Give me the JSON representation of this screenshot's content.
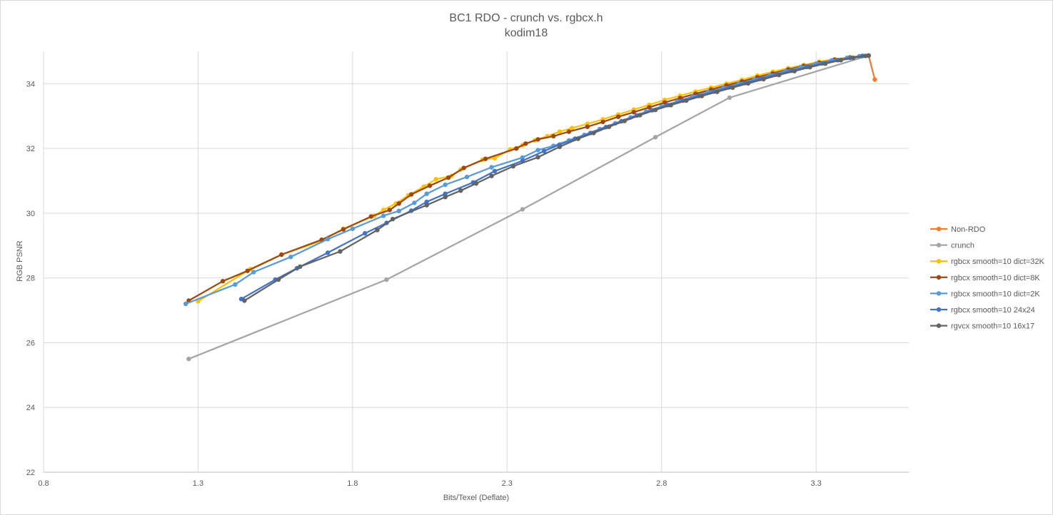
{
  "chart_data": {
    "type": "line",
    "title": "BC1 RDO - crunch vs. rgbcx.h",
    "subtitle": "kodim18",
    "xlabel": "Bits/Texel (Deflate)",
    "ylabel": "RGB PSNR",
    "xlim": [
      0.8,
      3.6
    ],
    "ylim": [
      22,
      35
    ],
    "x_ticks": [
      "0.8",
      "1.3",
      "1.8",
      "2.3",
      "2.8",
      "3.3"
    ],
    "y_ticks": [
      "22",
      "24",
      "26",
      "28",
      "30",
      "32",
      "34"
    ],
    "grid": true,
    "legend_position": "right",
    "series": [
      {
        "name": "Non-RDO",
        "color": "#ED7D31",
        "points": [
          [
            3.47,
            34.87
          ],
          [
            3.49,
            34.13
          ]
        ]
      },
      {
        "name": "crunch",
        "color": "#A5A5A5",
        "points": [
          [
            1.27,
            25.5
          ],
          [
            1.91,
            27.95
          ],
          [
            2.35,
            30.12
          ],
          [
            2.78,
            32.35
          ],
          [
            3.02,
            33.57
          ],
          [
            3.47,
            34.87
          ]
        ]
      },
      {
        "name": "rgbcx smooth=10 dict=32K",
        "color": "#FFC000",
        "points": [
          [
            1.3,
            27.28
          ],
          [
            1.47,
            28.28
          ],
          [
            1.57,
            28.72
          ],
          [
            1.7,
            29.15
          ],
          [
            1.77,
            29.52
          ],
          [
            1.87,
            29.92
          ],
          [
            1.9,
            30.1
          ],
          [
            1.94,
            30.3
          ],
          [
            1.98,
            30.55
          ],
          [
            2.03,
            30.82
          ],
          [
            2.07,
            31.05
          ],
          [
            2.12,
            31.15
          ],
          [
            2.15,
            31.35
          ],
          [
            2.22,
            31.65
          ],
          [
            2.26,
            31.7
          ],
          [
            2.31,
            31.97
          ],
          [
            2.35,
            32.1
          ],
          [
            2.39,
            32.25
          ],
          [
            2.43,
            32.38
          ],
          [
            2.47,
            32.52
          ],
          [
            2.51,
            32.63
          ],
          [
            2.56,
            32.76
          ],
          [
            2.61,
            32.9
          ],
          [
            2.66,
            33.05
          ],
          [
            2.71,
            33.2
          ],
          [
            2.76,
            33.35
          ],
          [
            2.81,
            33.5
          ],
          [
            2.86,
            33.63
          ],
          [
            2.91,
            33.76
          ],
          [
            2.96,
            33.88
          ],
          [
            3.01,
            34.0
          ],
          [
            3.06,
            34.12
          ],
          [
            3.11,
            34.25
          ],
          [
            3.16,
            34.37
          ],
          [
            3.21,
            34.48
          ],
          [
            3.26,
            34.58
          ],
          [
            3.31,
            34.68
          ],
          [
            3.36,
            34.76
          ],
          [
            3.41,
            34.82
          ],
          [
            3.45,
            34.86
          ],
          [
            3.47,
            34.87
          ]
        ]
      },
      {
        "name": "rgbcx smooth=10 dict=8K",
        "color": "#9E480E",
        "points": [
          [
            1.27,
            27.3
          ],
          [
            1.38,
            27.9
          ],
          [
            1.46,
            28.22
          ],
          [
            1.57,
            28.72
          ],
          [
            1.7,
            29.18
          ],
          [
            1.77,
            29.5
          ],
          [
            1.86,
            29.9
          ],
          [
            1.92,
            30.1
          ],
          [
            1.95,
            30.3
          ],
          [
            1.99,
            30.58
          ],
          [
            2.05,
            30.85
          ],
          [
            2.11,
            31.1
          ],
          [
            2.16,
            31.4
          ],
          [
            2.23,
            31.68
          ],
          [
            2.33,
            32.0
          ],
          [
            2.36,
            32.15
          ],
          [
            2.4,
            32.28
          ],
          [
            2.45,
            32.38
          ],
          [
            2.5,
            32.52
          ],
          [
            2.56,
            32.67
          ],
          [
            2.61,
            32.82
          ],
          [
            2.66,
            32.98
          ],
          [
            2.71,
            33.12
          ],
          [
            2.76,
            33.27
          ],
          [
            2.81,
            33.42
          ],
          [
            2.86,
            33.56
          ],
          [
            2.91,
            33.69
          ],
          [
            2.96,
            33.82
          ],
          [
            3.01,
            33.95
          ],
          [
            3.06,
            34.07
          ],
          [
            3.11,
            34.2
          ],
          [
            3.16,
            34.32
          ],
          [
            3.21,
            34.44
          ],
          [
            3.26,
            34.55
          ],
          [
            3.31,
            34.65
          ],
          [
            3.36,
            34.74
          ],
          [
            3.41,
            34.81
          ],
          [
            3.45,
            34.86
          ],
          [
            3.47,
            34.87
          ]
        ]
      },
      {
        "name": "rgbcx smooth=10 dict=2K",
        "color": "#5B9BD5",
        "points": [
          [
            1.26,
            27.2
          ],
          [
            1.42,
            27.8
          ],
          [
            1.48,
            28.18
          ],
          [
            1.6,
            28.65
          ],
          [
            1.72,
            29.2
          ],
          [
            1.8,
            29.52
          ],
          [
            1.9,
            29.92
          ],
          [
            1.95,
            30.07
          ],
          [
            2.0,
            30.32
          ],
          [
            2.04,
            30.6
          ],
          [
            2.1,
            30.88
          ],
          [
            2.17,
            31.12
          ],
          [
            2.25,
            31.42
          ],
          [
            2.35,
            31.72
          ],
          [
            2.4,
            31.95
          ],
          [
            2.45,
            32.08
          ],
          [
            2.5,
            32.25
          ],
          [
            2.55,
            32.42
          ],
          [
            2.6,
            32.6
          ],
          [
            2.65,
            32.78
          ],
          [
            2.7,
            32.96
          ],
          [
            2.75,
            33.14
          ],
          [
            2.8,
            33.3
          ],
          [
            2.85,
            33.45
          ],
          [
            2.9,
            33.6
          ],
          [
            2.95,
            33.74
          ],
          [
            3.0,
            33.87
          ],
          [
            3.05,
            34.0
          ],
          [
            3.1,
            34.13
          ],
          [
            3.15,
            34.26
          ],
          [
            3.2,
            34.39
          ],
          [
            3.25,
            34.51
          ],
          [
            3.3,
            34.62
          ],
          [
            3.35,
            34.72
          ],
          [
            3.4,
            34.8
          ],
          [
            3.44,
            34.85
          ],
          [
            3.47,
            34.87
          ]
        ]
      },
      {
        "name": "rgbcx smooth=10 24x24",
        "color": "#4472C4",
        "points": [
          [
            1.44,
            27.35
          ],
          [
            1.55,
            27.95
          ],
          [
            1.62,
            28.3
          ],
          [
            1.72,
            28.78
          ],
          [
            1.84,
            29.38
          ],
          [
            1.91,
            29.7
          ],
          [
            1.99,
            30.08
          ],
          [
            2.04,
            30.35
          ],
          [
            2.1,
            30.6
          ],
          [
            2.19,
            30.95
          ],
          [
            2.26,
            31.3
          ],
          [
            2.35,
            31.62
          ],
          [
            2.42,
            31.92
          ],
          [
            2.47,
            32.12
          ],
          [
            2.52,
            32.3
          ],
          [
            2.57,
            32.48
          ],
          [
            2.62,
            32.66
          ],
          [
            2.67,
            32.84
          ],
          [
            2.72,
            33.02
          ],
          [
            2.77,
            33.18
          ],
          [
            2.82,
            33.34
          ],
          [
            2.87,
            33.48
          ],
          [
            2.92,
            33.62
          ],
          [
            2.97,
            33.76
          ],
          [
            3.02,
            33.89
          ],
          [
            3.07,
            34.02
          ],
          [
            3.12,
            34.15
          ],
          [
            3.17,
            34.28
          ],
          [
            3.22,
            34.4
          ],
          [
            3.27,
            34.52
          ],
          [
            3.32,
            34.63
          ],
          [
            3.37,
            34.73
          ],
          [
            3.41,
            34.8
          ],
          [
            3.45,
            34.86
          ],
          [
            3.47,
            34.87
          ]
        ]
      },
      {
        "name": "rgvcx smooth=10 16x17",
        "color": "#636363",
        "points": [
          [
            1.45,
            27.3
          ],
          [
            1.56,
            27.95
          ],
          [
            1.63,
            28.35
          ],
          [
            1.76,
            28.82
          ],
          [
            1.88,
            29.48
          ],
          [
            1.93,
            29.82
          ],
          [
            2.04,
            30.25
          ],
          [
            2.1,
            30.5
          ],
          [
            2.15,
            30.7
          ],
          [
            2.2,
            30.92
          ],
          [
            2.25,
            31.15
          ],
          [
            2.32,
            31.45
          ],
          [
            2.4,
            31.73
          ],
          [
            2.47,
            32.05
          ],
          [
            2.53,
            32.3
          ],
          [
            2.58,
            32.48
          ],
          [
            2.63,
            32.67
          ],
          [
            2.68,
            32.85
          ],
          [
            2.73,
            33.03
          ],
          [
            2.78,
            33.19
          ],
          [
            2.83,
            33.34
          ],
          [
            2.88,
            33.48
          ],
          [
            2.93,
            33.62
          ],
          [
            2.98,
            33.75
          ],
          [
            3.03,
            33.88
          ],
          [
            3.08,
            34.01
          ],
          [
            3.13,
            34.14
          ],
          [
            3.18,
            34.27
          ],
          [
            3.23,
            34.39
          ],
          [
            3.28,
            34.51
          ],
          [
            3.33,
            34.62
          ],
          [
            3.38,
            34.73
          ],
          [
            3.42,
            34.8
          ],
          [
            3.46,
            34.86
          ],
          [
            3.47,
            34.87
          ]
        ]
      }
    ]
  }
}
